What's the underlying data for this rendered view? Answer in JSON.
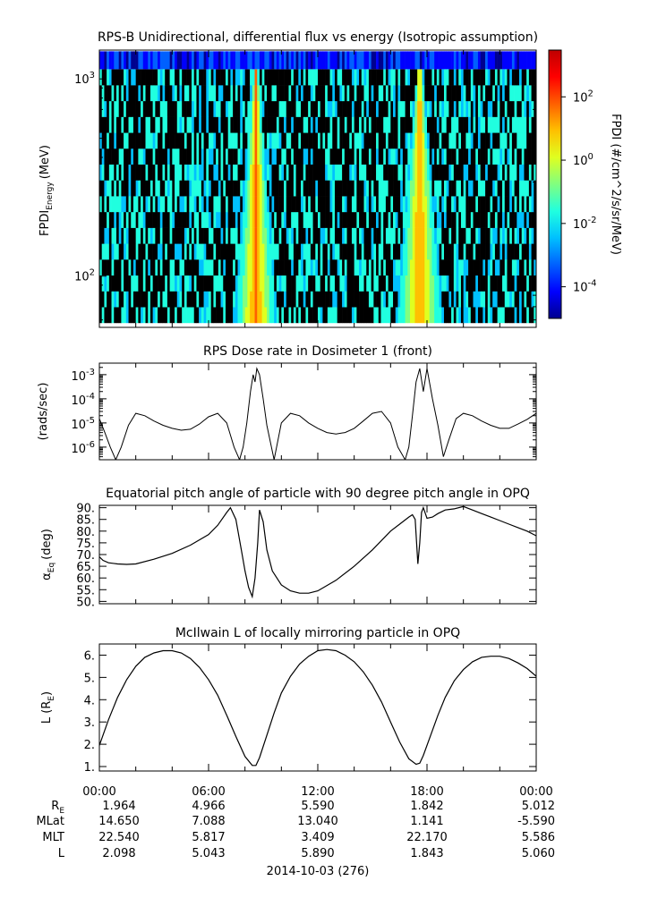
{
  "chart_data": [
    {
      "type": "heatmap",
      "title": "RPS-B  Unidirectional, differential flux vs energy (Isotropic assumption)",
      "ylabel_main": "FPDI",
      "ylabel_sub": "Energy",
      "ylabel_unit": "(MeV)",
      "yscale": "log",
      "ylim": [
        55,
        1400
      ],
      "yticks": [
        {
          "label_base": "10",
          "label_exp": "2",
          "value": 100
        },
        {
          "label_base": "10",
          "label_exp": "3",
          "value": 1000
        }
      ],
      "xlim_hours": [
        0,
        24
      ],
      "colorbar": {
        "label": "FPDI (#/cm^2/s/sr/MeV)",
        "scale": "log",
        "range": [
          1e-05,
          3000
        ],
        "ticks": [
          {
            "label_base": "10",
            "label_exp": "-4",
            "value": 0.0001
          },
          {
            "label_base": "10",
            "label_exp": "-2",
            "value": 0.01
          },
          {
            "label_base": "10",
            "label_exp": "0",
            "value": 1
          },
          {
            "label_base": "10",
            "label_exp": "2",
            "value": 100
          }
        ],
        "colors": [
          "#00008f",
          "#0000ff",
          "#0060ff",
          "#00c0ff",
          "#20ffdf",
          "#80ff80",
          "#dfff20",
          "#ffc000",
          "#ff6000",
          "#ff0000",
          "#bf0000"
        ]
      },
      "peaks": [
        {
          "x_hours": 8.6,
          "half_width_hours_low_energy": 1.2,
          "half_width_hours_high_energy": 0.2,
          "peak_flux": 30
        },
        {
          "x_hours": 17.6,
          "half_width_hours_low_energy": 1.3,
          "half_width_hours_high_energy": 0.2,
          "peak_flux": 30
        }
      ],
      "background_flux": 0.01
    },
    {
      "type": "line",
      "title": "RPS  Dose rate in Dosimeter 1 (front)",
      "ylabel": "(rads/sec)",
      "yscale": "log",
      "ylim": [
        3e-07,
        0.003
      ],
      "yticks": [
        {
          "label_base": "10",
          "label_exp": "-6",
          "value": 1e-06
        },
        {
          "label_base": "10",
          "label_exp": "-5",
          "value": 1e-05
        },
        {
          "label_base": "10",
          "label_exp": "-4",
          "value": 0.0001
        },
        {
          "label_base": "10",
          "label_exp": "-3",
          "value": 0.001
        }
      ],
      "xlim_hours": [
        0,
        24
      ],
      "x": [
        0,
        0.3,
        0.6,
        0.9,
        1.2,
        1.6,
        2.0,
        2.5,
        3.0,
        3.5,
        4.0,
        4.5,
        5.0,
        5.5,
        6.0,
        6.5,
        7.0,
        7.4,
        7.7,
        7.9,
        8.1,
        8.3,
        8.45,
        8.55,
        8.65,
        8.8,
        9.0,
        9.2,
        9.6,
        10.0,
        10.5,
        11.0,
        11.5,
        12.0,
        12.5,
        13.0,
        13.5,
        14.0,
        14.5,
        15.0,
        15.5,
        16.0,
        16.4,
        16.8,
        17.0,
        17.2,
        17.4,
        17.6,
        17.8,
        18.0,
        18.3,
        18.6,
        18.9,
        19.2,
        19.6,
        20.0,
        20.5,
        21.0,
        21.5,
        22.0,
        22.5,
        23.0,
        23.5,
        24.0
      ],
      "y": [
        1.5e-05,
        4e-06,
        1e-06,
        3e-07,
        1e-06,
        8e-06,
        2.5e-05,
        2e-05,
        1.2e-05,
        8e-06,
        6e-06,
        5e-06,
        5.5e-06,
        9e-06,
        1.8e-05,
        2.5e-05,
        1e-05,
        1e-06,
        3e-07,
        1e-06,
        1e-05,
        0.0002,
        0.001,
        0.0005,
        0.0018,
        0.001,
        0.0001,
        8e-06,
        3e-07,
        1e-05,
        2.5e-05,
        2e-05,
        1e-05,
        6e-06,
        4e-06,
        3.5e-06,
        4e-06,
        6e-06,
        1.2e-05,
        2.5e-05,
        3e-05,
        1e-05,
        1e-06,
        3e-07,
        1e-06,
        2e-05,
        0.0005,
        0.0018,
        0.0002,
        0.0018,
        0.0001,
        8e-06,
        4e-07,
        2e-06,
        1.5e-05,
        2.5e-05,
        2e-05,
        1.2e-05,
        8e-06,
        6e-06,
        6e-06,
        9e-06,
        1.4e-05,
        2.5e-05
      ]
    },
    {
      "type": "line",
      "title": "Equatorial pitch angle of particle with 90 degree pitch angle in OPQ",
      "ylabel_main": "α",
      "ylabel_sub": "Eq",
      "ylabel_unit": "(deg)",
      "ylim": [
        49,
        91
      ],
      "yticks": [
        50,
        55,
        60,
        65,
        70,
        75,
        80,
        85,
        90
      ],
      "ytick_labels": [
        "50.",
        "55.",
        "60.",
        "65.",
        "70.",
        "75.",
        "80.",
        "85.",
        "90."
      ],
      "xlim_hours": [
        0,
        24
      ],
      "x": [
        0,
        0.2,
        0.5,
        1.0,
        1.5,
        2.0,
        3.0,
        4.0,
        5.0,
        6.0,
        6.5,
        7.0,
        7.2,
        7.5,
        7.8,
        8.0,
        8.2,
        8.4,
        8.55,
        8.7,
        8.8,
        9.0,
        9.2,
        9.5,
        10.0,
        10.5,
        11.0,
        11.5,
        12.0,
        13.0,
        14.0,
        15.0,
        16.0,
        16.5,
        17.0,
        17.2,
        17.35,
        17.5,
        17.6,
        17.7,
        17.8,
        18.0,
        18.3,
        18.6,
        19.0,
        19.5,
        20.0,
        20.5,
        21.0,
        21.5,
        22.0,
        22.5,
        23.0,
        23.5,
        24.0
      ],
      "y": [
        69,
        67.5,
        66.5,
        66,
        65.8,
        66,
        68,
        70.5,
        74,
        78.5,
        82.5,
        88,
        90,
        85,
        72,
        63,
        56,
        52,
        60,
        75,
        89,
        84,
        72,
        63,
        57,
        54.5,
        53.5,
        53.5,
        54.5,
        59,
        65,
        72,
        80,
        83,
        86,
        87,
        85,
        66,
        75,
        88,
        90,
        85.5,
        86,
        87.5,
        89,
        89.5,
        90.5,
        89,
        87.5,
        86,
        84.5,
        83,
        81.5,
        80,
        78
      ]
    },
    {
      "type": "line",
      "title": "McIlwain L of locally mirroring particle in OPQ",
      "ylabel_main": "L (R",
      "ylabel_sub": "E",
      "ylabel_unit": ")",
      "ylim": [
        0.8,
        6.5
      ],
      "yticks": [
        1,
        2,
        3,
        4,
        5,
        6
      ],
      "ytick_labels": [
        "1.",
        "2.",
        "3.",
        "4.",
        "5.",
        "6."
      ],
      "xlim_hours": [
        0,
        24
      ],
      "x": [
        0,
        0.5,
        1.0,
        1.5,
        2.0,
        2.5,
        3.0,
        3.5,
        4.0,
        4.5,
        5.0,
        5.5,
        6.0,
        6.5,
        7.0,
        7.5,
        8.0,
        8.4,
        8.6,
        8.8,
        9.2,
        9.6,
        10.0,
        10.5,
        11.0,
        11.5,
        12.0,
        12.5,
        13.0,
        13.5,
        14.0,
        14.5,
        15.0,
        15.5,
        16.0,
        16.5,
        17.0,
        17.4,
        17.6,
        17.8,
        18.2,
        18.6,
        19.0,
        19.5,
        20.0,
        20.5,
        21.0,
        21.5,
        22.0,
        22.5,
        23.0,
        23.5,
        24.0
      ],
      "y": [
        1.95,
        3.1,
        4.1,
        4.9,
        5.5,
        5.9,
        6.1,
        6.2,
        6.2,
        6.1,
        5.85,
        5.45,
        4.9,
        4.2,
        3.3,
        2.35,
        1.45,
        1.05,
        1.05,
        1.4,
        2.4,
        3.4,
        4.3,
        5.05,
        5.6,
        5.95,
        6.2,
        6.25,
        6.2,
        6.0,
        5.7,
        5.25,
        4.65,
        3.9,
        3.0,
        2.1,
        1.35,
        1.1,
        1.15,
        1.5,
        2.4,
        3.3,
        4.1,
        4.85,
        5.35,
        5.7,
        5.9,
        5.95,
        5.95,
        5.85,
        5.65,
        5.4,
        5.05
      ]
    }
  ],
  "xaxis": {
    "tick_labels": [
      "00:00",
      "06:00",
      "12:00",
      "18:00",
      "00:00"
    ],
    "tick_hours": [
      0,
      6,
      12,
      18,
      24
    ],
    "date_label": "2014-10-03 (276)"
  },
  "ephemeris": {
    "row_labels": [
      {
        "main": "R",
        "sub": "E"
      },
      {
        "main": "MLat",
        "sub": ""
      },
      {
        "main": "MLT",
        "sub": ""
      },
      {
        "main": "L",
        "sub": ""
      }
    ],
    "rows": [
      [
        "1.964",
        "4.966",
        "5.590",
        "1.842",
        "5.012"
      ],
      [
        "14.650",
        "7.088",
        "13.040",
        "1.141",
        "-5.590"
      ],
      [
        "22.540",
        "5.817",
        "3.409",
        "22.170",
        "5.586"
      ],
      [
        "2.098",
        "5.043",
        "5.890",
        "1.843",
        "5.060"
      ]
    ]
  }
}
